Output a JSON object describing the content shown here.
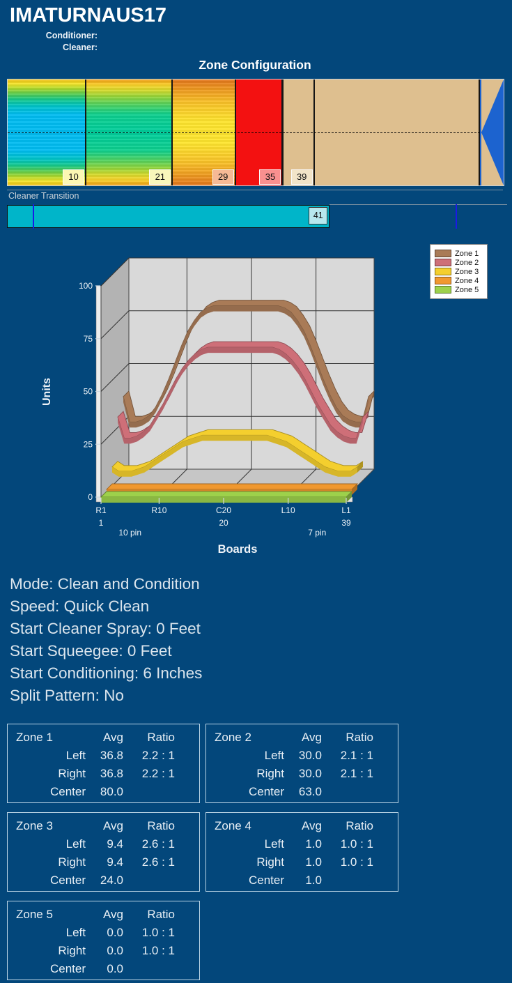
{
  "header": {
    "title": "IMATURNAUS17",
    "conditioner_label": "Conditioner:",
    "cleaner_label": "Cleaner:"
  },
  "zone_config": {
    "title": "Zone Configuration",
    "marker_color": "#1c63cf",
    "segments": [
      {
        "name": "zone-1-range",
        "end_board": 10,
        "label": "10",
        "style": "grad-cool",
        "label_bg": "#fcf7b3"
      },
      {
        "name": "zone-2-range",
        "end_board": 21,
        "label": "21",
        "style": "grad-green",
        "label_bg": "#f9f7bb"
      },
      {
        "name": "zone-3-range",
        "end_board": 29,
        "label": "29",
        "style": "grad-warm",
        "label_bg": "#f6b995"
      },
      {
        "name": "zone-4-range",
        "end_board": 35,
        "label": "35",
        "style": "solid-red",
        "label_bg": "#f9908f"
      },
      {
        "name": "zone-5-range",
        "end_board": 39,
        "label": "39",
        "style": "solid-tan",
        "label_bg": "#f2e4c8"
      },
      {
        "name": "tail-range",
        "end_board": 60,
        "label": "",
        "style": "solid-tan",
        "label_bg": ""
      }
    ]
  },
  "cleaner_transition": {
    "label": "Cleaner Transition",
    "value": "41",
    "value_board": 41,
    "fill_color": "#00b5c9",
    "value_bg": "#b7e8ee",
    "tick_color": "#1a1ae6",
    "tick_boards": [
      3.3,
      57
    ]
  },
  "chart_data": {
    "type": "area",
    "projection": "3d",
    "title": "",
    "xlabel": "Boards",
    "ylabel": "Units",
    "ylim": [
      0,
      100
    ],
    "yticks": [
      0,
      25,
      50,
      75,
      100
    ],
    "x_count": 39,
    "grid": true,
    "legend_position": "top-right",
    "xticks": [
      {
        "board": 1,
        "label": "R1",
        "sub": "1"
      },
      {
        "board": 10,
        "label": "R10",
        "sub": ""
      },
      {
        "board": 20,
        "label": "C20",
        "sub": "20"
      },
      {
        "board": 30,
        "label": "L10",
        "sub": ""
      },
      {
        "board": 39,
        "label": "L1",
        "sub": "39"
      }
    ],
    "annotations": [
      {
        "text": "10 pin",
        "board": 5.5
      },
      {
        "text": "7 pin",
        "board": 34.5
      }
    ],
    "series": [
      {
        "name": "Zone 1",
        "color": "#a97b57",
        "left_avg": 36.8,
        "right_avg": 36.8,
        "center_avg": 80.0,
        "values": [
          37,
          25,
          25,
          26,
          28,
          32,
          38,
          45,
          53,
          61,
          68,
          73,
          77,
          79,
          80,
          80,
          80,
          80,
          80,
          80,
          80,
          80,
          80,
          80,
          80,
          79,
          77,
          73,
          68,
          61,
          53,
          45,
          38,
          32,
          28,
          26,
          25,
          25,
          37
        ]
      },
      {
        "name": "Zone 2",
        "color": "#ce6f78",
        "left_avg": 30.0,
        "right_avg": 30.0,
        "center_avg": 63.0,
        "values": [
          30,
          20,
          20,
          21,
          23,
          26,
          31,
          36,
          42,
          48,
          53,
          57,
          60,
          62,
          63,
          63,
          63,
          63,
          63,
          63,
          63,
          63,
          63,
          63,
          63,
          62,
          60,
          57,
          53,
          48,
          42,
          36,
          31,
          26,
          23,
          21,
          20,
          20,
          30
        ]
      },
      {
        "name": "Zone 3",
        "color": "#f4cf2e",
        "left_avg": 9.4,
        "right_avg": 9.4,
        "center_avg": 24.0,
        "values": [
          9,
          7,
          7,
          7,
          8,
          9,
          11,
          13,
          15,
          17,
          19,
          21,
          22,
          23,
          24,
          24,
          24,
          24,
          24,
          24,
          24,
          24,
          24,
          24,
          24,
          23,
          22,
          21,
          19,
          17,
          15,
          13,
          11,
          9,
          8,
          7,
          7,
          7,
          9
        ]
      },
      {
        "name": "Zone 4",
        "color": "#f0982f",
        "left_avg": 1.0,
        "right_avg": 1.0,
        "center_avg": 1.0,
        "values": [
          1,
          1,
          1,
          1,
          1,
          1,
          1,
          1,
          1,
          1,
          1,
          1,
          1,
          1,
          1,
          1,
          1,
          1,
          1,
          1,
          1,
          1,
          1,
          1,
          1,
          1,
          1,
          1,
          1,
          1,
          1,
          1,
          1,
          1,
          1,
          1,
          1,
          1,
          1
        ]
      },
      {
        "name": "Zone 5",
        "color": "#9dd14b",
        "left_avg": 0.0,
        "right_avg": 0.0,
        "center_avg": 0.0,
        "values": [
          0,
          0,
          0,
          0,
          0,
          0,
          0,
          0,
          0,
          0,
          0,
          0,
          0,
          0,
          0,
          0,
          0,
          0,
          0,
          0,
          0,
          0,
          0,
          0,
          0,
          0,
          0,
          0,
          0,
          0,
          0,
          0,
          0,
          0,
          0,
          0,
          0,
          0,
          0
        ]
      }
    ]
  },
  "settings_lines": [
    "Mode: Clean and Condition",
    "Speed: Quick Clean",
    "Start Cleaner Spray: 0 Feet",
    "Start Squeegee: 0 Feet",
    "Start Conditioning: 6 Inches",
    "Split Pattern: No"
  ],
  "zone_tables": [
    {
      "name": "Zone 1",
      "avg_header": "Avg",
      "ratio_header": "Ratio",
      "rows": [
        [
          "Left",
          "36.8",
          "2.2 : 1"
        ],
        [
          "Right",
          "36.8",
          "2.2 : 1"
        ],
        [
          "Center",
          "80.0",
          ""
        ]
      ]
    },
    {
      "name": "Zone 2",
      "avg_header": "Avg",
      "ratio_header": "Ratio",
      "rows": [
        [
          "Left",
          "30.0",
          "2.1 : 1"
        ],
        [
          "Right",
          "30.0",
          "2.1 : 1"
        ],
        [
          "Center",
          "63.0",
          ""
        ]
      ]
    },
    {
      "name": "Zone 3",
      "avg_header": "Avg",
      "ratio_header": "Ratio",
      "rows": [
        [
          "Left",
          "9.4",
          "2.6 : 1"
        ],
        [
          "Right",
          "9.4",
          "2.6 : 1"
        ],
        [
          "Center",
          "24.0",
          ""
        ]
      ]
    },
    {
      "name": "Zone 4",
      "avg_header": "Avg",
      "ratio_header": "Ratio",
      "rows": [
        [
          "Left",
          "1.0",
          "1.0 : 1"
        ],
        [
          "Right",
          "1.0",
          "1.0 : 1"
        ],
        [
          "Center",
          "1.0",
          ""
        ]
      ]
    },
    {
      "name": "Zone 5",
      "avg_header": "Avg",
      "ratio_header": "Ratio",
      "rows": [
        [
          "Left",
          "0.0",
          "1.0 : 1"
        ],
        [
          "Right",
          "0.0",
          "1.0 : 1"
        ],
        [
          "Center",
          "0.0",
          ""
        ]
      ]
    }
  ]
}
